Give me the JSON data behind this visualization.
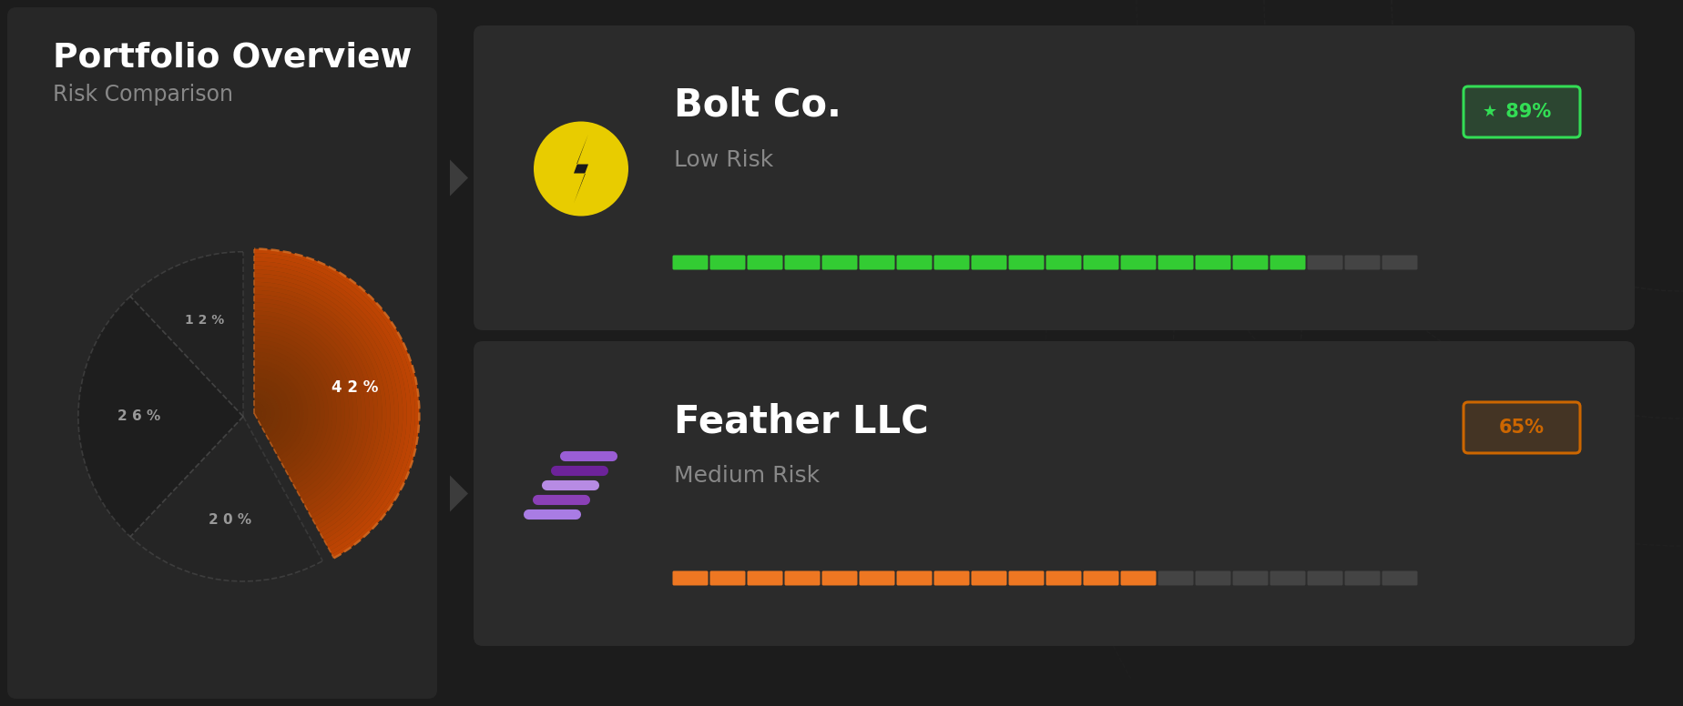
{
  "bg_color": "#1c1c1c",
  "card_left_bg": "#272727",
  "card_right_bg": "#2b2b2b",
  "title": "Portfolio Overview",
  "subtitle": "Risk Comparison",
  "pie_values": [
    42,
    20,
    26,
    12
  ],
  "pie_labels": [
    "4 2 %",
    "2 0 %",
    "2 6 %",
    "1 2 %"
  ],
  "pie_label_colors": [
    "#ffffff",
    "#999999",
    "#999999",
    "#999999"
  ],
  "pie_slice_colors": [
    "#7a3c08",
    "#252525",
    "#1e1e1e",
    "#222222"
  ],
  "pie_dashed_orange": "#d06820",
  "pie_dashed_gray": "#555555",
  "pie_explode": [
    0.07,
    0.0,
    0.0,
    0.0
  ],
  "company1_name": "Bolt Co.",
  "company1_risk": "Low Risk",
  "company1_score": " 89%",
  "company1_score_color": "#33dd55",
  "company1_bar_fill": 17,
  "company1_bar_total": 20,
  "company1_bar_color": "#33cc33",
  "company1_bar_empty_color": "#444444",
  "company1_logo_bg": "#e8cc00",
  "company2_name": "Feather LLC",
  "company2_risk": "Medium Risk",
  "company2_score": "65%",
  "company2_score_color": "#cc6600",
  "company2_bar_fill": 13,
  "company2_bar_total": 20,
  "company2_bar_color": "#ee7722",
  "company2_bar_empty_color": "#444444",
  "feather_colors": [
    "#bb88ff",
    "#9944cc",
    "#cc99ff",
    "#7722aa",
    "#aa66ee"
  ],
  "label_white": "#ffffff",
  "label_gray": "#888888",
  "deco_color": "#555555"
}
